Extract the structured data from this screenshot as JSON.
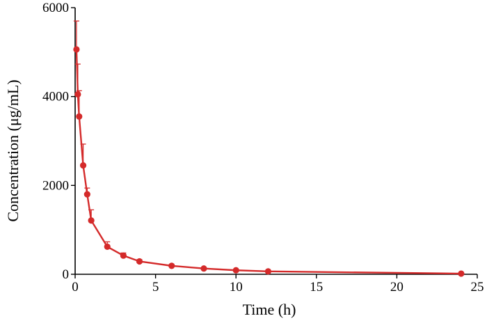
{
  "chart_data": {
    "type": "line",
    "title": "",
    "xlabel": "Time (h)",
    "ylabel": "Concentration (μg/mL)",
    "xlim": [
      0,
      25
    ],
    "ylim": [
      0,
      6000
    ],
    "x_ticks": [
      "0",
      "5",
      "10",
      "15",
      "20",
      "25"
    ],
    "y_ticks": [
      "0",
      "2000",
      "4000",
      "6000"
    ],
    "grid": false,
    "legend": "none",
    "color": "#d42a2a",
    "series": [
      {
        "x": [
          0.083,
          0.167,
          0.25,
          0.5,
          0.75,
          1,
          2,
          3,
          4,
          6,
          8,
          10,
          12,
          24
        ],
        "y": [
          5060,
          4050,
          3550,
          2450,
          1800,
          1210,
          620,
          420,
          290,
          190,
          130,
          90,
          65,
          15
        ],
        "err": [
          640,
          680,
          580,
          480,
          140,
          240,
          110,
          60,
          40,
          30,
          20,
          15,
          10,
          5
        ]
      }
    ]
  }
}
